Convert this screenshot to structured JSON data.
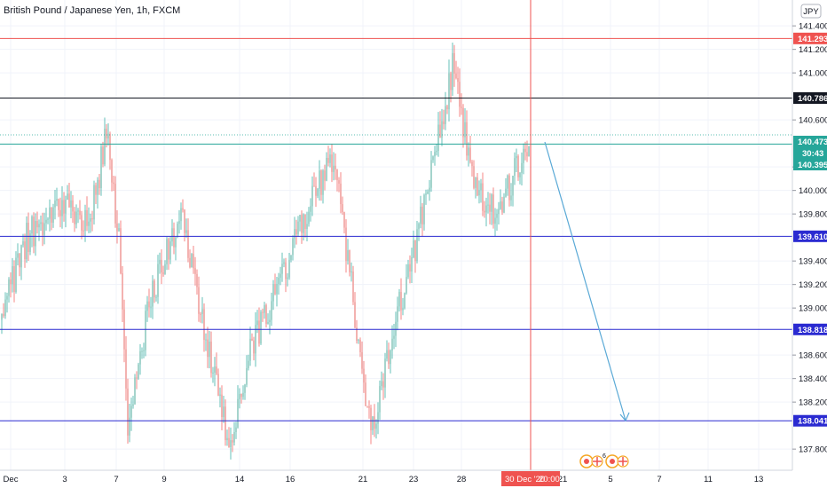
{
  "header": {
    "title": "British Pound / Japanese Yen, 1h, FXCM",
    "currency_badge": "JPY"
  },
  "crosshair": {
    "time_label": "30 Dec '20",
    "time_clock": "20:00",
    "price_label": "141.293"
  },
  "price_label": {
    "current": "140.473",
    "countdown": "30:43",
    "lower": "140.395"
  },
  "event_icons": [
    "flag-icon",
    "flag-icon"
  ],
  "event_count": "6",
  "colors": {
    "up": "#26a69a",
    "down": "#ef5350",
    "up_candle": "#8fc9bf",
    "down_candle": "#f0a09c",
    "resistance": "#ef5350",
    "black_level": "#131722",
    "support": "#2a2ad1",
    "green_level": "#26a69a",
    "arrow": "#5aa9d6",
    "grid": "#f0f3fa"
  },
  "chart_data": {
    "type": "candlestick",
    "title": "British Pound / Japanese Yen, 1h, FXCM",
    "symbol": "GBPJPY",
    "interval": "1h",
    "source": "FXCM",
    "currency": "JPY",
    "y_ticks": [
      "141.400",
      "141.200",
      "141.000",
      "140.600",
      "140.200",
      "140.000",
      "139.800",
      "139.400",
      "139.200",
      "139.000",
      "138.600",
      "138.400",
      "138.200",
      "137.800"
    ],
    "ylim": [
      137.62,
      141.62
    ],
    "x_ticks": [
      "Dec",
      "3",
      "7",
      "9",
      "14",
      "16",
      "21",
      "23",
      "28",
      "21",
      "5",
      "7",
      "11",
      "13"
    ],
    "horizontal_levels": [
      {
        "value": 141.293,
        "label": "141.293",
        "color": "#ef5350"
      },
      {
        "value": 140.786,
        "label": "140.786",
        "color": "#131722"
      },
      {
        "value": 140.395,
        "label": "140.395",
        "color": "#26a69a"
      },
      {
        "value": 139.61,
        "label": "139.610",
        "color": "#2a2ad1"
      },
      {
        "value": 138.818,
        "label": "138.818",
        "color": "#2a2ad1"
      },
      {
        "value": 138.041,
        "label": "138.041",
        "color": "#2a2ad1"
      }
    ],
    "last_price": 140.473,
    "projection_arrow": {
      "from": {
        "date": "30 Dec '20 20:00",
        "price": 140.47
      },
      "to": {
        "date": "6 Jan '21",
        "price": 138.03
      }
    },
    "price_path": [
      {
        "x": "Dec",
        "price": 138.9
      },
      {
        "x": "2",
        "price": 139.6
      },
      {
        "x": "3",
        "price": 139.9
      },
      {
        "x": "4",
        "price": 139.7
      },
      {
        "x": "7",
        "price": 140.5
      },
      {
        "x": "8",
        "price": 139.5
      },
      {
        "x": "9",
        "price": 138.0
      },
      {
        "x": "10",
        "price": 139.1
      },
      {
        "x": "11",
        "price": 139.8
      },
      {
        "x": "14",
        "price": 137.8
      },
      {
        "x": "15",
        "price": 138.7
      },
      {
        "x": "16",
        "price": 139.3
      },
      {
        "x": "17",
        "price": 139.8
      },
      {
        "x": "18",
        "price": 140.3
      },
      {
        "x": "21",
        "price": 137.9
      },
      {
        "x": "22",
        "price": 138.7
      },
      {
        "x": "23",
        "price": 139.6
      },
      {
        "x": "24",
        "price": 140.3
      },
      {
        "x": "25",
        "price": 141.05
      },
      {
        "x": "28",
        "price": 140.0
      },
      {
        "x": "29",
        "price": 139.8
      },
      {
        "x": "30",
        "price": 140.47
      }
    ]
  }
}
